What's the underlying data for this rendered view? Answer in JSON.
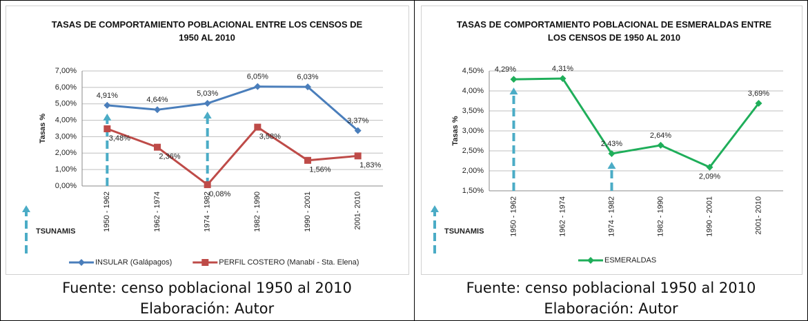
{
  "chart_data": [
    {
      "type": "line",
      "title": "TASAS DE COMPORTAMIENTO POBLACIONAL ENTRE LOS CENSOS DE 1950 AL 2010",
      "ylabel": "Tasas %",
      "annotation": "TSUNAMIS",
      "categories": [
        "1950 - 1962",
        "1962 - 1974",
        "1974 - 1982",
        "1982 - 1990",
        "1990 - 2001",
        "2001- 2010"
      ],
      "ylim": [
        0,
        7
      ],
      "yticks": [
        {
          "value": 0,
          "label": "0,00%"
        },
        {
          "value": 1,
          "label": "1,00%"
        },
        {
          "value": 2,
          "label": "2,00%"
        },
        {
          "value": 3,
          "label": "3,00%"
        },
        {
          "value": 4,
          "label": "4,00%"
        },
        {
          "value": 5,
          "label": "5,00%"
        },
        {
          "value": 6,
          "label": "6,00%"
        },
        {
          "value": 7,
          "label": "7,00%"
        }
      ],
      "grid": true,
      "legend": "bottom",
      "series": [
        {
          "name": "INSULAR (Galápagos)",
          "color": "#4a7ebb",
          "marker": "diamond",
          "values": [
            4.91,
            4.64,
            5.03,
            6.05,
            6.03,
            3.37
          ],
          "value_labels": [
            "4,91%",
            "4,64%",
            "5,03%",
            "6,05%",
            "6,03%",
            "3,37%"
          ]
        },
        {
          "name": "PERFIL COSTERO (Manabí - Sta. Elena)",
          "color": "#be4b48",
          "marker": "square",
          "values": [
            3.48,
            2.36,
            0.08,
            3.58,
            1.56,
            1.83
          ],
          "value_labels": [
            "3,48%",
            "2,36%",
            "0,08%",
            "3,58%",
            "1,56%",
            "1,83%"
          ]
        }
      ]
    },
    {
      "type": "line",
      "title": "TASAS DE COMPORTAMIENTO POBLACIONAL DE ESMERALDAS ENTRE LOS CENSOS DE 1950 AL 2010",
      "ylabel": "Tasas %",
      "annotation": "TSUNAMIS",
      "categories": [
        "1950 - 1962",
        "1962 - 1974",
        "1974 - 1982",
        "1982 - 1990",
        "1990 - 2001",
        "2001- 2010"
      ],
      "ylim": [
        1.5,
        4.5
      ],
      "yticks": [
        {
          "value": 1.5,
          "label": "1,50%"
        },
        {
          "value": 2,
          "label": "2,00%"
        },
        {
          "value": 2.5,
          "label": "2,50%"
        },
        {
          "value": 3,
          "label": "3,00%"
        },
        {
          "value": 3.5,
          "label": "3,50%"
        },
        {
          "value": 4,
          "label": "4,00%"
        },
        {
          "value": 4.5,
          "label": "4,50%"
        }
      ],
      "grid": true,
      "legend": "bottom",
      "series": [
        {
          "name": "ESMERALDAS",
          "color": "#1fae5a",
          "marker": "diamond",
          "values": [
            4.29,
            4.31,
            2.43,
            2.64,
            2.09,
            3.69
          ],
          "value_labels": [
            "4,29%",
            "4,31%",
            "2,43%",
            "2,64%",
            "2,09%",
            "3,69%"
          ]
        }
      ]
    }
  ],
  "captions": [
    {
      "source": "Fuente: censo poblacional 1950 al 2010",
      "author": "Elaboración: Autor"
    },
    {
      "source": "Fuente: censo poblacional 1950 al 2010",
      "author": "Elaboración: Autor"
    }
  ]
}
